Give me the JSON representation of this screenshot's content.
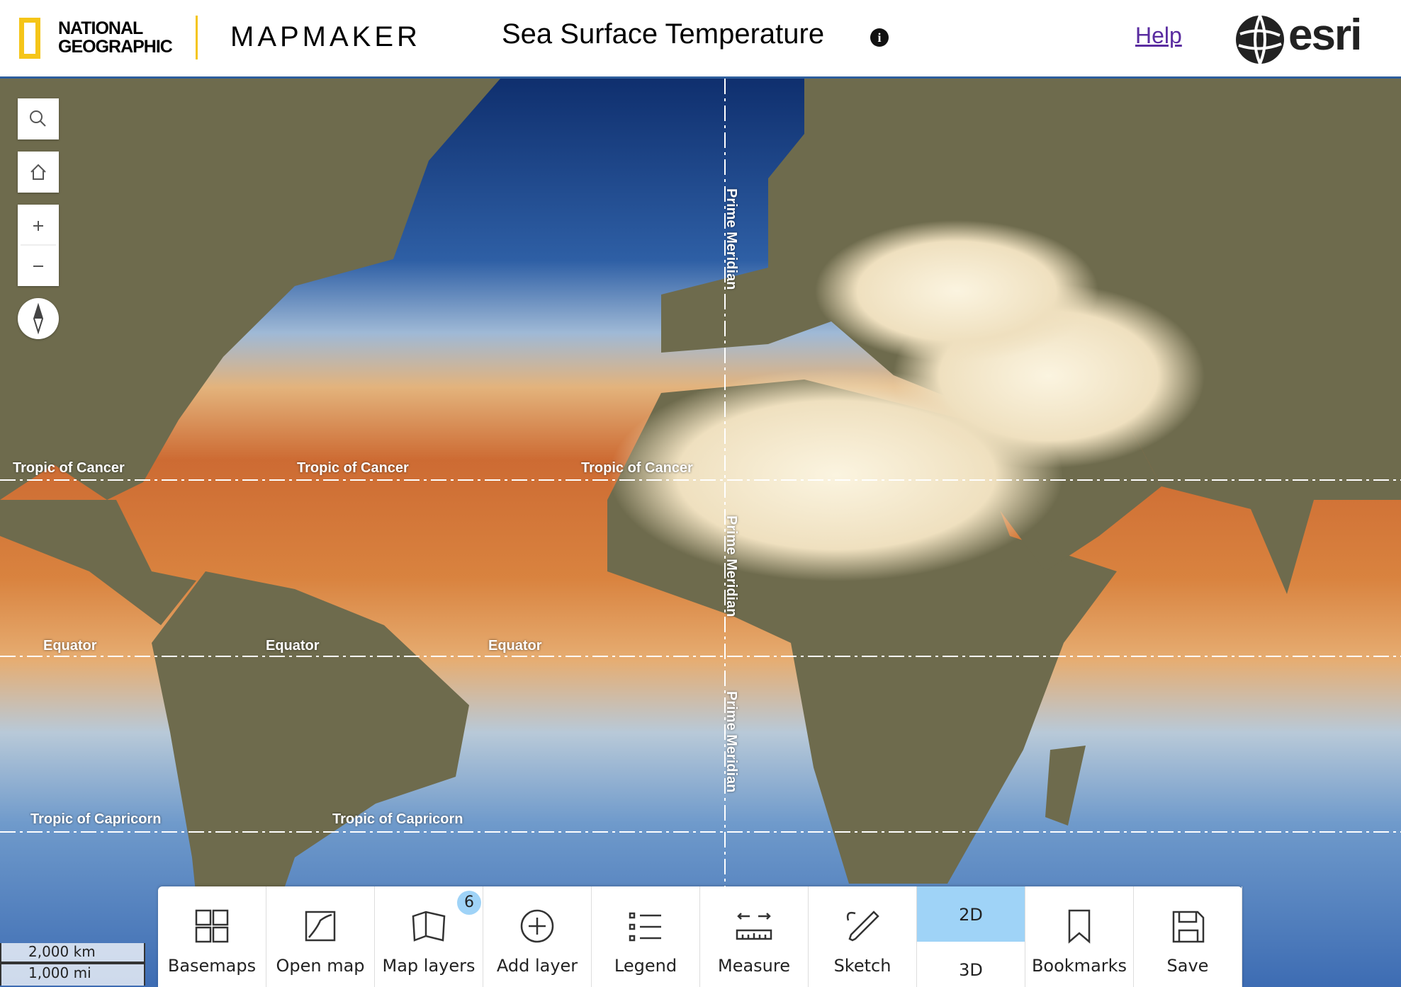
{
  "header": {
    "brand": [
      "NATIONAL",
      "GEOGRAPHIC"
    ],
    "app": "MAPMAKER",
    "title": "Sea Surface Temperature",
    "help": "Help",
    "logo": "esri"
  },
  "map": {
    "tropic_of_cancer": "Tropic of Cancer",
    "equator": "Equator",
    "tropic_of_capricorn": "Tropic of Capricorn",
    "prime_meridian": "Prime Meridian"
  },
  "scale_bar": [
    "2,000 km",
    "1,000 mi"
  ],
  "toolbar": {
    "items": [
      "Basemaps",
      "Open map",
      "Map layers",
      "Add layer",
      "Legend",
      "Measure",
      "Sketch",
      "Bookmarks",
      "Save"
    ],
    "layer_count": 6,
    "view_2d": "2D",
    "view_3d": "3D"
  }
}
